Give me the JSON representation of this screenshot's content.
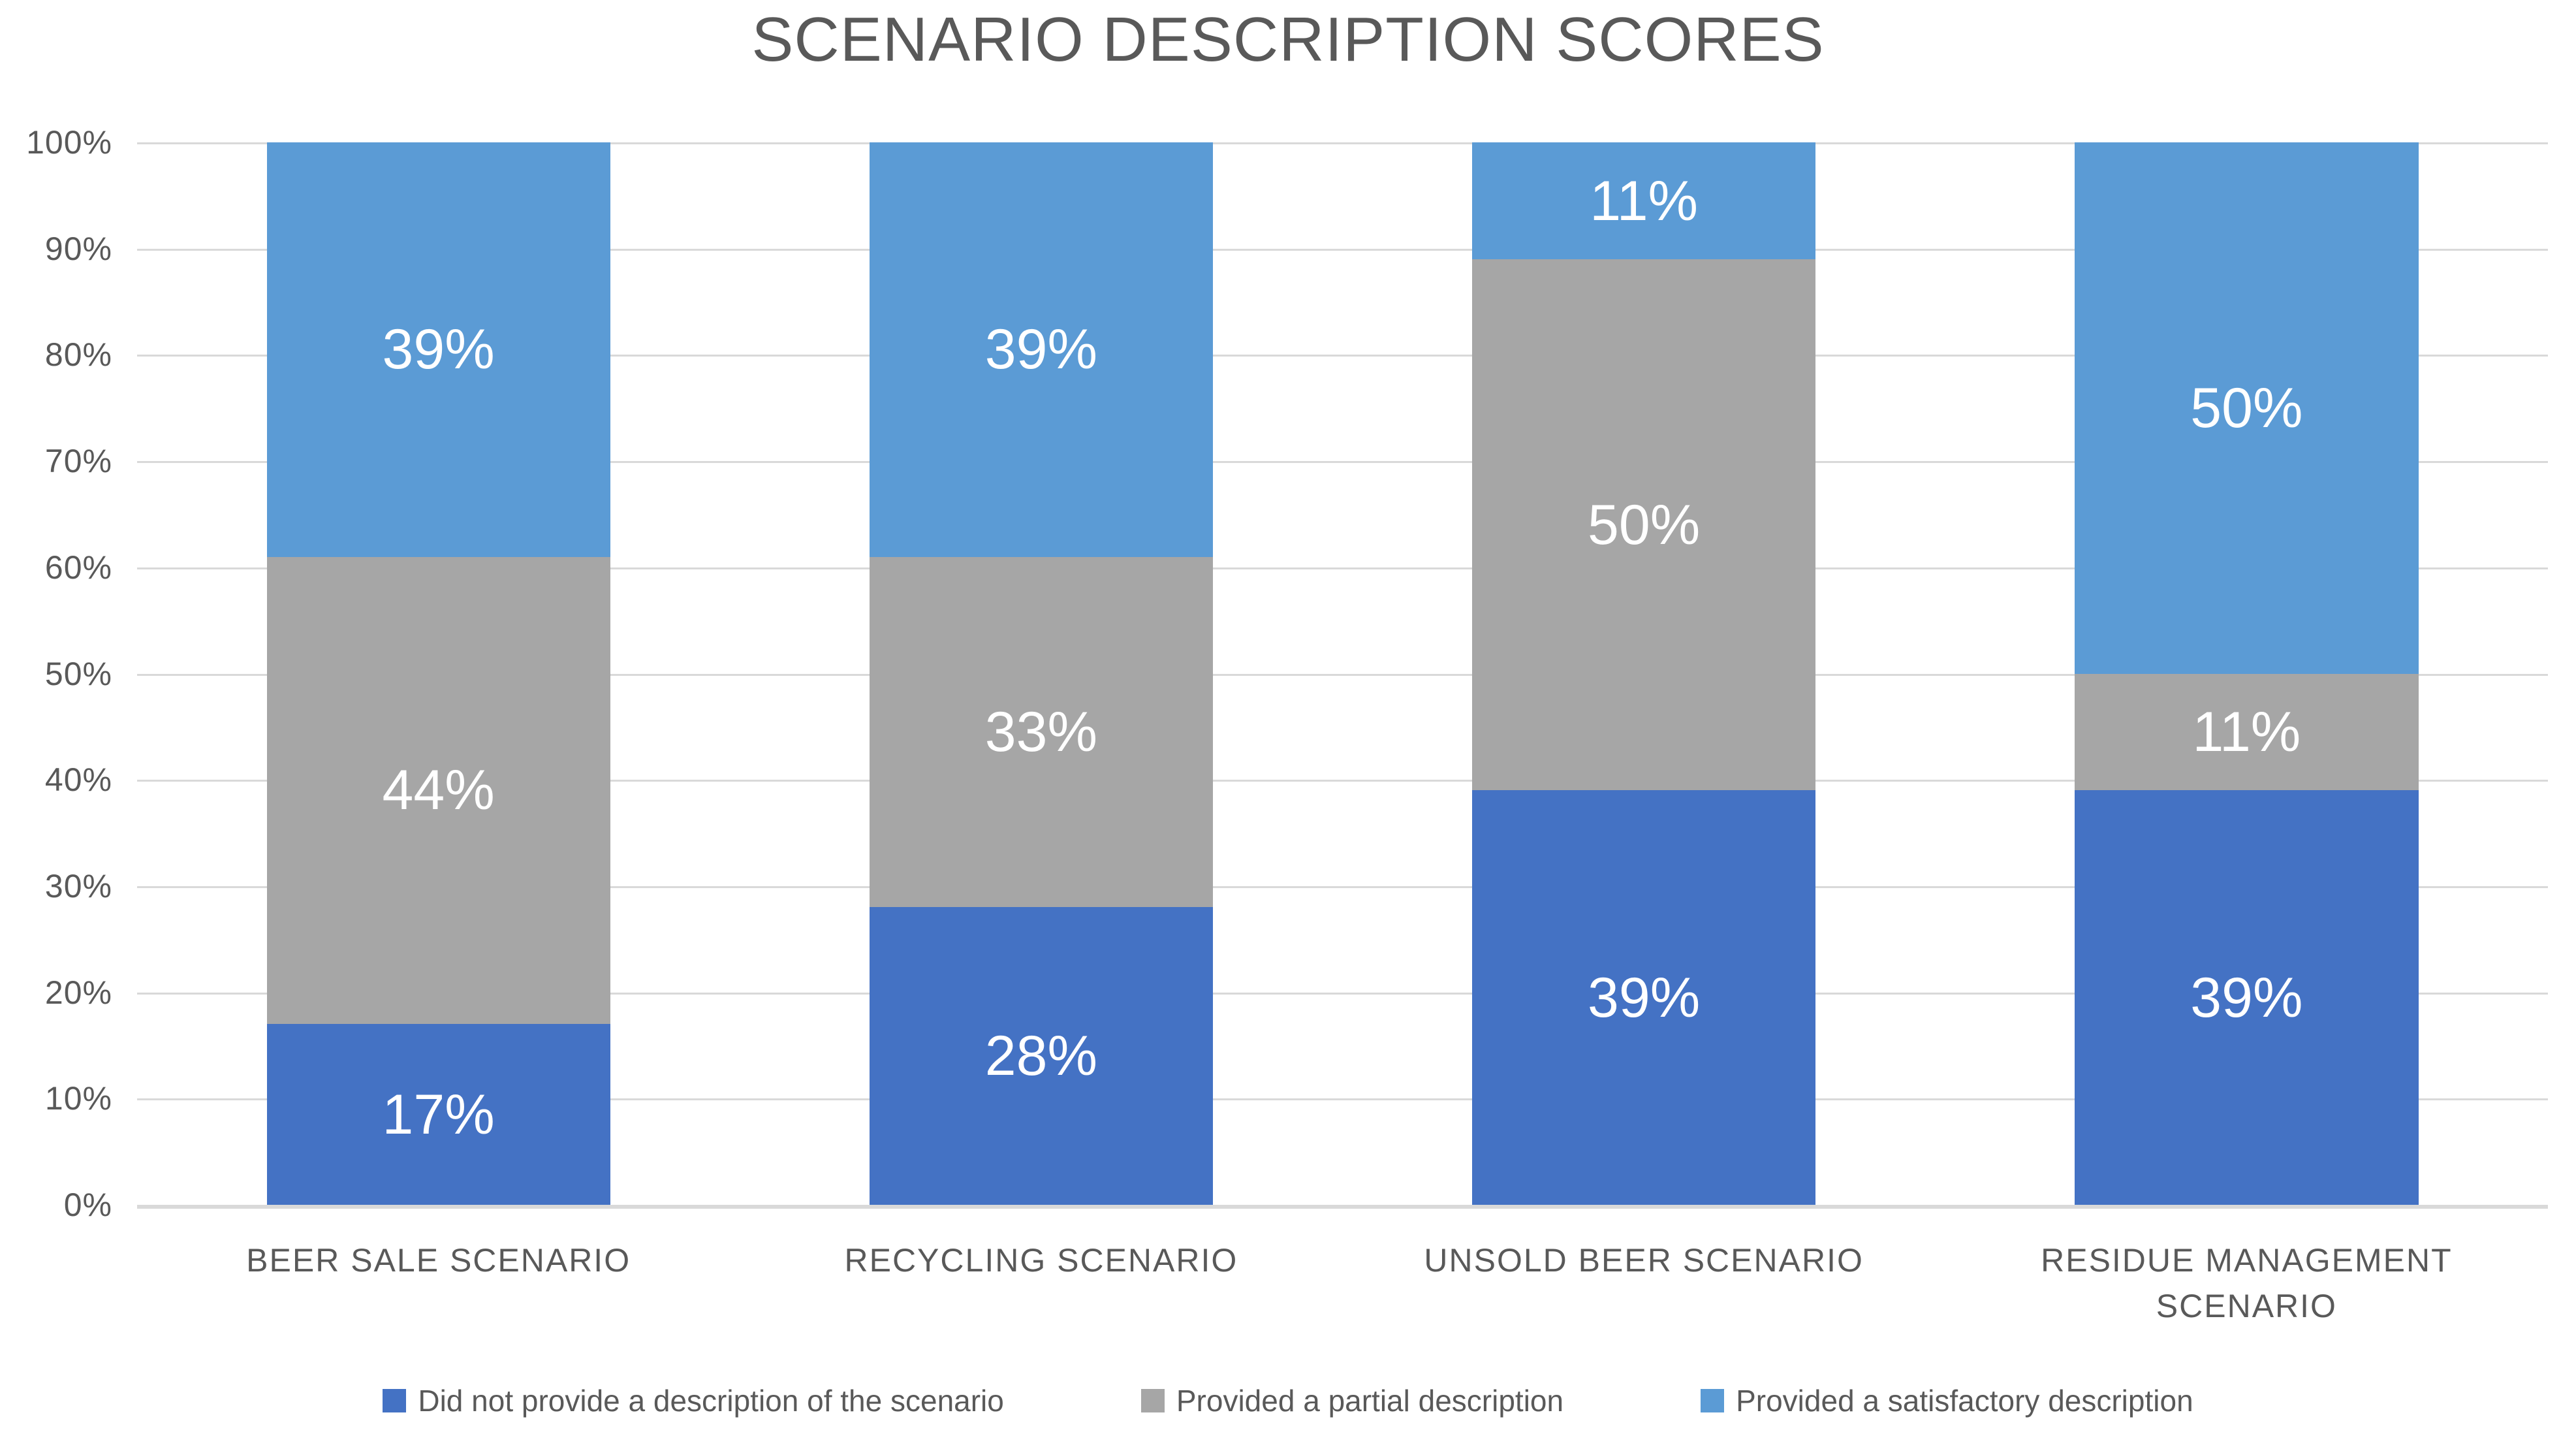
{
  "chart_data": {
    "type": "bar",
    "stacked": true,
    "title": "SCENARIO DESCRIPTION SCORES",
    "categories": [
      "BEER SALE SCENARIO",
      "RECYCLING SCENARIO",
      "UNSOLD BEER SCENARIO",
      "RESIDUE MANAGEMENT SCENARIO"
    ],
    "series": [
      {
        "name": "Did not provide a description of the scenario",
        "color": "#4472C4",
        "values": [
          17,
          28,
          39,
          39
        ],
        "labels": [
          "17%",
          "28%",
          "39%",
          "39%"
        ]
      },
      {
        "name": "Provided a partial description",
        "color": "#A6A6A6",
        "values": [
          44,
          33,
          50,
          11
        ],
        "labels": [
          "44%",
          "33%",
          "50%",
          "11%"
        ]
      },
      {
        "name": "Provided a satisfactory description",
        "color": "#5B9BD5",
        "values": [
          39,
          39,
          11,
          50
        ],
        "labels": [
          "39%",
          "39%",
          "11%",
          "50%"
        ]
      }
    ],
    "y_axis": {
      "min": 0,
      "max": 100,
      "tick_step": 10,
      "tick_values": [
        0,
        10,
        20,
        30,
        40,
        50,
        60,
        70,
        80,
        90,
        100
      ],
      "tick_labels": [
        "0%",
        "10%",
        "20%",
        "30%",
        "40%",
        "50%",
        "60%",
        "70%",
        "80%",
        "90%",
        "100%"
      ]
    },
    "grid": true,
    "legend_position": "bottom",
    "data_label_format": "percent",
    "colors": {
      "gridline": "#D9D9D9",
      "axis_text": "#595959",
      "title_text": "#595959",
      "data_label_text": "#FFFFFF",
      "background": "#FFFFFF"
    }
  }
}
